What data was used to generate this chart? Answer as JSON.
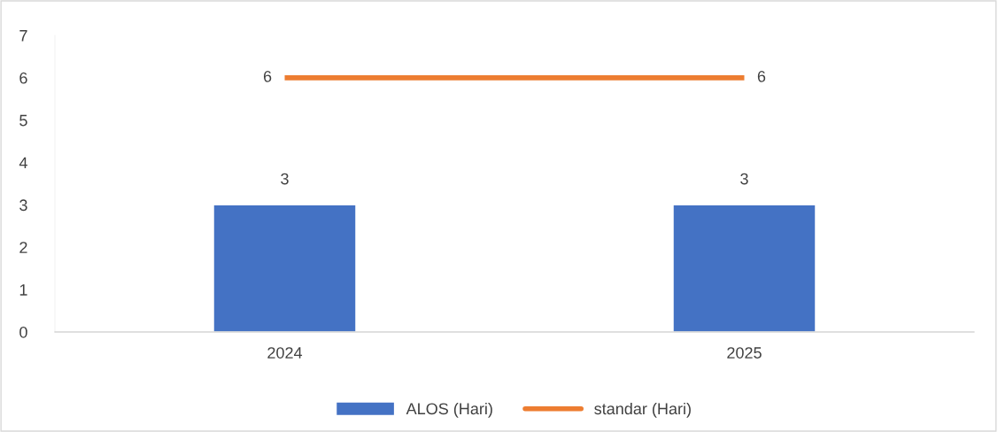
{
  "chart_data": {
    "type": "bar",
    "categories": [
      "2024",
      "2025"
    ],
    "series": [
      {
        "name": "ALOS (Hari)",
        "color": "#4472c4",
        "values": [
          3,
          3
        ]
      },
      {
        "name": "standar (Hari)",
        "type": "line",
        "color": "#ed7d31",
        "values": [
          6,
          6
        ]
      }
    ],
    "ylim": [
      0,
      7
    ],
    "yticks": [
      0,
      1,
      2,
      3,
      4,
      5,
      6,
      7
    ],
    "grid": false,
    "legend": "bottom",
    "data_labels": true,
    "marker": "none"
  }
}
